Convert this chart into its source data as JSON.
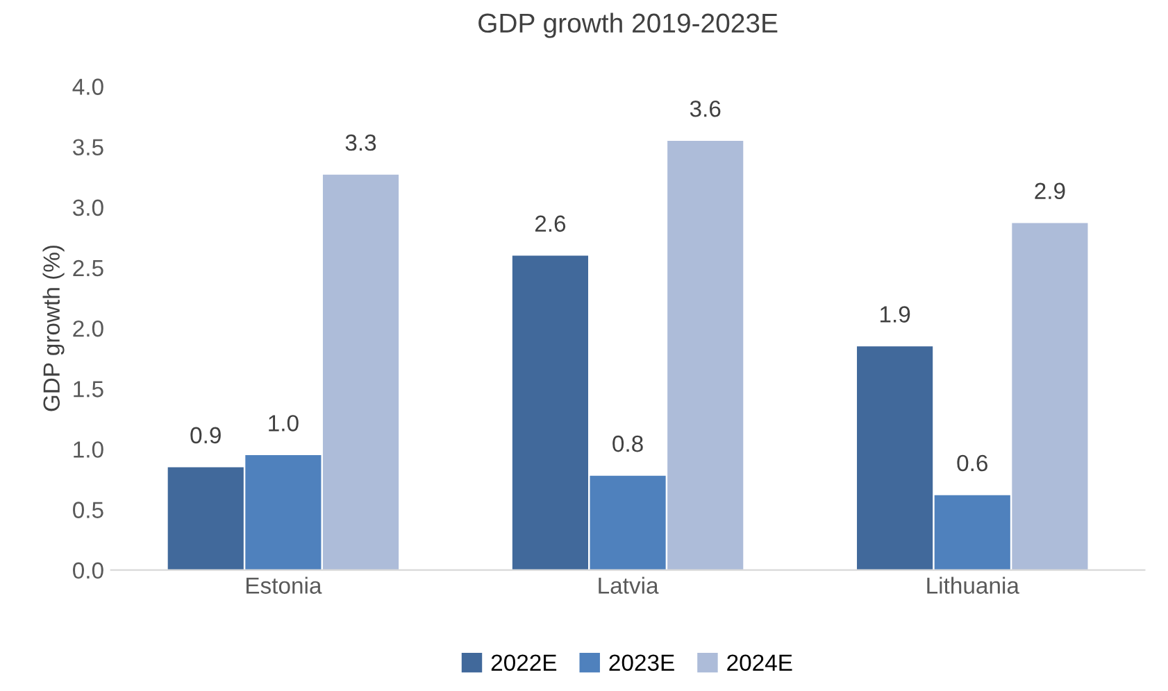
{
  "chart_data": {
    "type": "bar",
    "title": "GDP growth 2019-2023E",
    "ylabel": "GDP growth (%)",
    "categories": [
      "Estonia",
      "Latvia",
      "Lithuania"
    ],
    "series": [
      {
        "name": "2022E",
        "color": "#41699b",
        "values": [
          0.85,
          2.6,
          1.85
        ],
        "value_labels": [
          "0.9",
          "2.6",
          "1.9"
        ]
      },
      {
        "name": "2023E",
        "color": "#4f81bd",
        "values": [
          0.95,
          0.78,
          0.62
        ],
        "value_labels": [
          "1.0",
          "0.8",
          "0.6"
        ]
      },
      {
        "name": "2024E",
        "color": "#adbcd9",
        "values": [
          3.27,
          3.55,
          2.87
        ],
        "value_labels": [
          "3.3",
          "3.6",
          "2.9"
        ]
      }
    ],
    "ylim": [
      0,
      4
    ],
    "yticks": [
      {
        "value": 0,
        "label": "0.0"
      },
      {
        "value": 0.5,
        "label": "0.5"
      },
      {
        "value": 1,
        "label": "1.0"
      },
      {
        "value": 1.5,
        "label": "1.5"
      },
      {
        "value": 2,
        "label": "2.0"
      },
      {
        "value": 2.5,
        "label": "2.5"
      },
      {
        "value": 3,
        "label": "3.0"
      },
      {
        "value": 3.5,
        "label": "3.5"
      },
      {
        "value": 4,
        "label": "4.0"
      }
    ],
    "grid": false,
    "legend": "bottom"
  }
}
